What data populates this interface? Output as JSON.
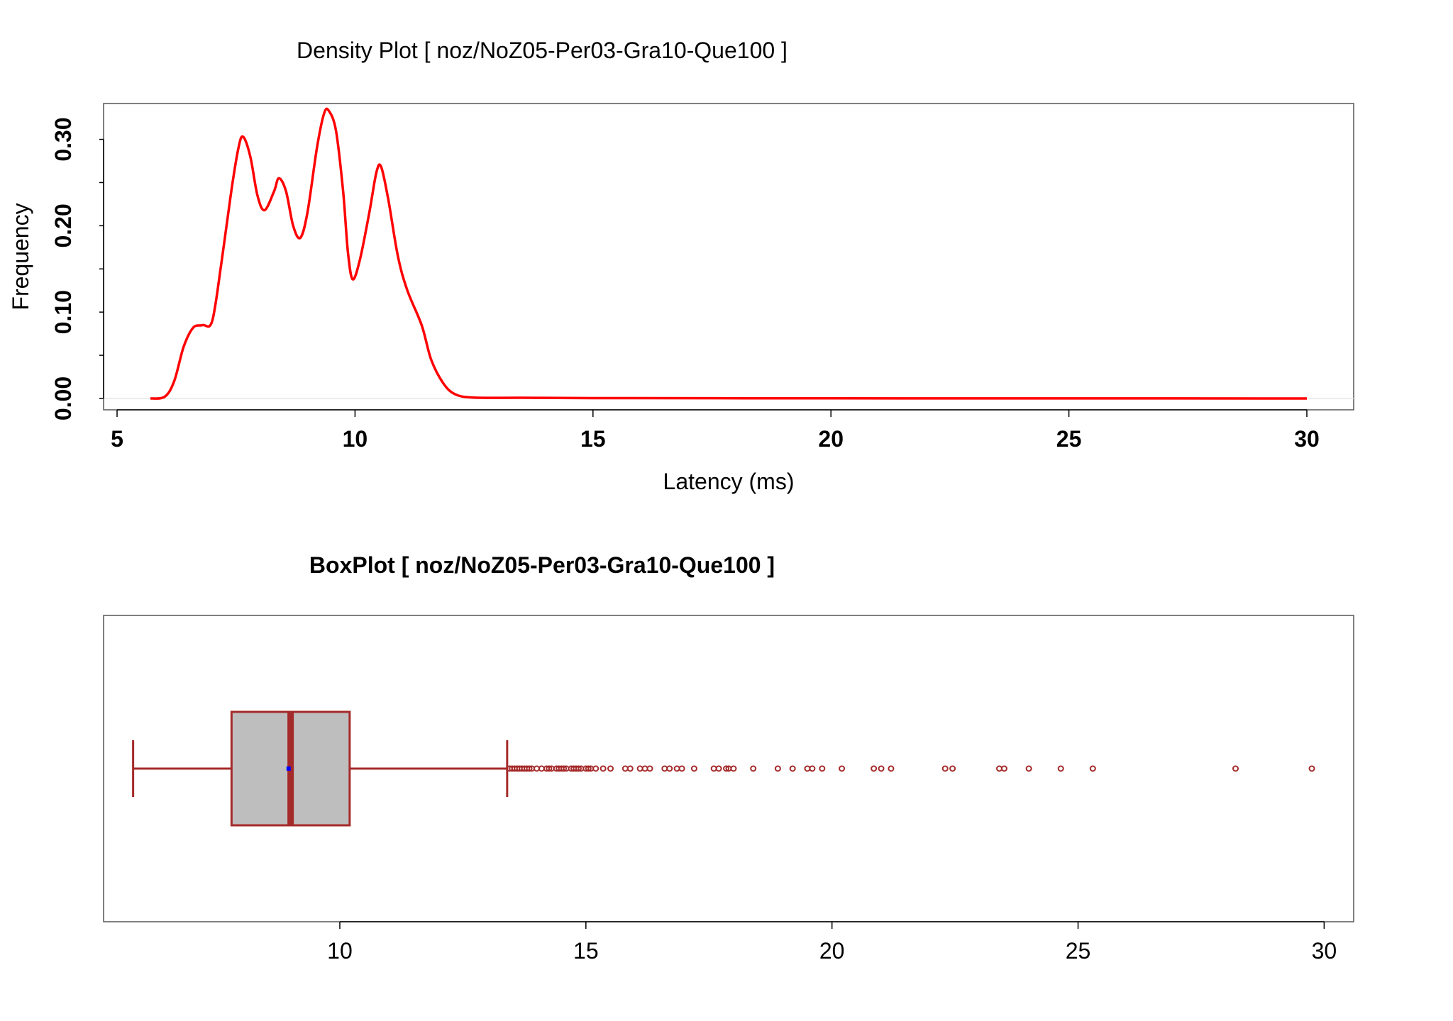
{
  "chart_data": [
    {
      "type": "line",
      "title": "Density Plot [ noz/NoZ05-Per03-Gra10-Que100 ]",
      "xlabel": "Latency (ms)",
      "ylabel": "Frequency",
      "xlim": [
        5,
        30
      ],
      "ylim": [
        0,
        0.33
      ],
      "x_ticks": [
        "5",
        "10",
        "15",
        "20",
        "25",
        "30"
      ],
      "y_ticks": [
        "0.00",
        "0.10",
        "0.20",
        "0.30"
      ],
      "grid": false,
      "series_color": "#ff0000",
      "points": [
        [
          5.7,
          0.0
        ],
        [
          6.0,
          0.002
        ],
        [
          6.2,
          0.02
        ],
        [
          6.4,
          0.06
        ],
        [
          6.6,
          0.082
        ],
        [
          6.8,
          0.085
        ],
        [
          7.0,
          0.09
        ],
        [
          7.2,
          0.16
        ],
        [
          7.4,
          0.24
        ],
        [
          7.55,
          0.29
        ],
        [
          7.65,
          0.303
        ],
        [
          7.8,
          0.28
        ],
        [
          7.95,
          0.235
        ],
        [
          8.1,
          0.218
        ],
        [
          8.3,
          0.24
        ],
        [
          8.4,
          0.255
        ],
        [
          8.55,
          0.24
        ],
        [
          8.7,
          0.2
        ],
        [
          8.85,
          0.186
        ],
        [
          9.0,
          0.215
        ],
        [
          9.2,
          0.29
        ],
        [
          9.35,
          0.33
        ],
        [
          9.45,
          0.333
        ],
        [
          9.6,
          0.31
        ],
        [
          9.75,
          0.24
        ],
        [
          9.85,
          0.17
        ],
        [
          9.95,
          0.138
        ],
        [
          10.1,
          0.16
        ],
        [
          10.3,
          0.215
        ],
        [
          10.45,
          0.262
        ],
        [
          10.55,
          0.268
        ],
        [
          10.7,
          0.23
        ],
        [
          10.9,
          0.165
        ],
        [
          11.1,
          0.125
        ],
        [
          11.4,
          0.085
        ],
        [
          11.6,
          0.045
        ],
        [
          11.85,
          0.018
        ],
        [
          12.1,
          0.005
        ],
        [
          12.5,
          0.001
        ],
        [
          13.5,
          0.0008
        ],
        [
          15,
          0.0004
        ],
        [
          20,
          0.0002
        ],
        [
          25,
          0.0001
        ],
        [
          30,
          0.0
        ]
      ]
    },
    {
      "type": "boxplot",
      "title": "BoxPlot [ noz/NoZ05-Per03-Gra10-Que100 ]",
      "xlim": [
        5.2,
        30.6
      ],
      "x_ticks": [
        "10",
        "15",
        "20",
        "25",
        "30"
      ],
      "whisker_low": 5.8,
      "q1": 7.8,
      "median": 9.0,
      "q3": 10.2,
      "whisker_high": 13.4,
      "mean": 8.96,
      "box_fill": "#bebebe",
      "box_stroke": "#a52a2a",
      "mean_color": "#0000ff",
      "outliers": [
        13.45,
        13.5,
        13.55,
        13.6,
        13.65,
        13.7,
        13.75,
        13.8,
        13.85,
        13.9,
        14.0,
        14.1,
        14.2,
        14.25,
        14.3,
        14.4,
        14.45,
        14.5,
        14.55,
        14.6,
        14.7,
        14.75,
        14.8,
        14.85,
        14.9,
        15.0,
        15.05,
        15.1,
        15.2,
        15.35,
        15.5,
        15.8,
        15.9,
        16.1,
        16.2,
        16.3,
        16.6,
        16.7,
        16.85,
        16.95,
        17.2,
        17.6,
        17.7,
        17.85,
        17.9,
        18.0,
        18.4,
        18.9,
        19.2,
        19.5,
        19.6,
        19.8,
        20.2,
        20.85,
        21.0,
        21.2,
        22.3,
        22.45,
        23.4,
        23.5,
        24.0,
        24.65,
        25.3,
        28.2,
        29.75
      ]
    }
  ]
}
